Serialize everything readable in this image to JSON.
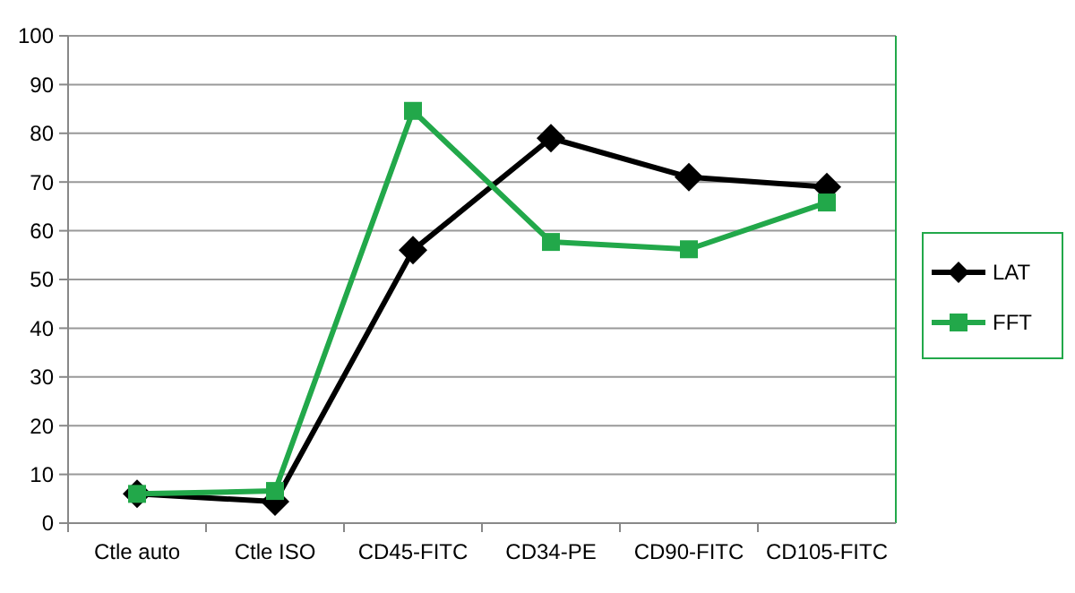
{
  "chart_data": {
    "type": "line",
    "categories": [
      "Ctle auto",
      "Ctle ISO",
      "CD45-FITC",
      "CD34-PE",
      "CD90-FITC",
      "CD105-FITC"
    ],
    "series": [
      {
        "name": "LAT",
        "color": "#000000",
        "marker": "diamond",
        "values": [
          6,
          4.4,
          56,
          79,
          71,
          69
        ]
      },
      {
        "name": "FFT",
        "color": "#22a84a",
        "marker": "square",
        "values": [
          6,
          6.6,
          84.6,
          57.7,
          56.2,
          65.8
        ]
      }
    ],
    "ylim": [
      0,
      100
    ],
    "yticks": [
      0,
      10,
      20,
      30,
      40,
      50,
      60,
      70,
      80,
      90,
      100
    ],
    "grid": "y",
    "legend": "right"
  }
}
